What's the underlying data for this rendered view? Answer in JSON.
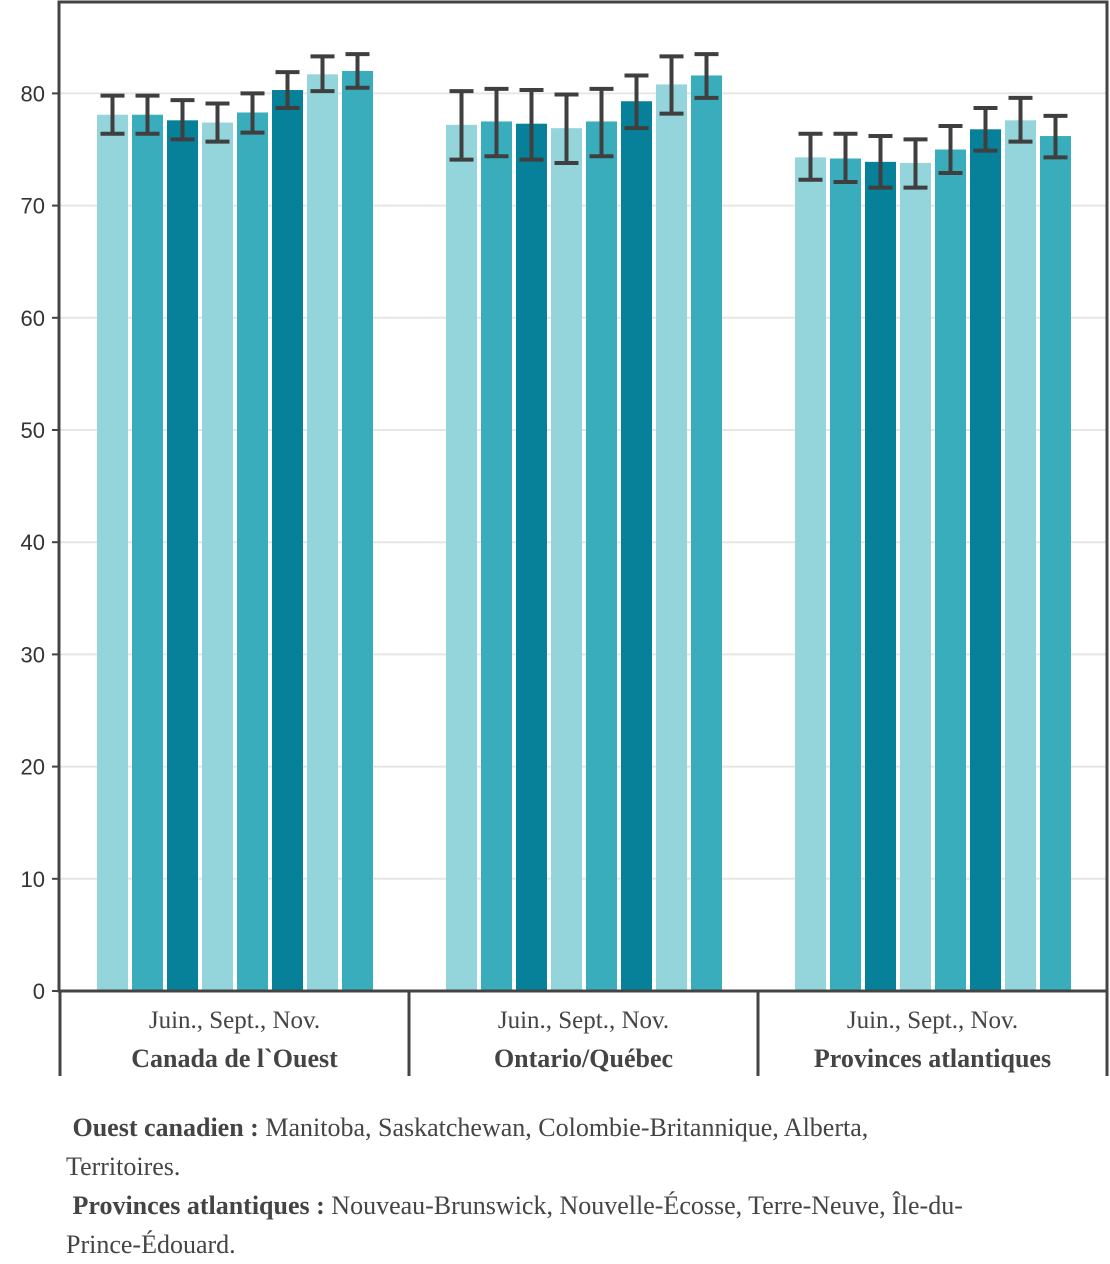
{
  "chart_data": {
    "type": "bar",
    "ylim": [
      0,
      85
    ],
    "yticks": [
      0,
      10,
      20,
      30,
      40,
      50,
      60,
      70,
      80
    ],
    "grid": true,
    "categories": [
      {
        "sublabel": "Juin., Sept., Nov.",
        "name": "Canada de l`Ouest"
      },
      {
        "sublabel": "Juin., Sept., Nov.",
        "name": "Ontario/Québec"
      },
      {
        "sublabel": "Juin., Sept., Nov.",
        "name": "Provinces atlantiques"
      }
    ],
    "series": [
      {
        "color": "#94d5dc",
        "values": [
          78.1,
          77.2,
          74.3
        ],
        "err_low": [
          76.4,
          74.1,
          72.3
        ],
        "err_high": [
          79.8,
          80.2,
          76.4
        ]
      },
      {
        "color": "#3aadbc",
        "values": [
          78.1,
          77.5,
          74.2
        ],
        "err_low": [
          76.4,
          74.4,
          72.1
        ],
        "err_high": [
          79.8,
          80.4,
          76.4
        ]
      },
      {
        "color": "#078099",
        "values": [
          77.6,
          77.3,
          73.9
        ],
        "err_low": [
          75.9,
          74.1,
          71.6
        ],
        "err_high": [
          79.4,
          80.3,
          76.2
        ]
      },
      {
        "color": "#94d5dc",
        "values": [
          77.4,
          76.9,
          73.8
        ],
        "err_low": [
          75.7,
          73.8,
          71.6
        ],
        "err_high": [
          79.1,
          79.9,
          75.9
        ]
      },
      {
        "color": "#3aadbc",
        "values": [
          78.3,
          77.5,
          75.0
        ],
        "err_low": [
          76.5,
          74.4,
          72.9
        ],
        "err_high": [
          80.0,
          80.4,
          77.1
        ]
      },
      {
        "color": "#078099",
        "values": [
          80.3,
          79.3,
          76.8
        ],
        "err_low": [
          78.7,
          76.9,
          74.9
        ],
        "err_high": [
          81.9,
          81.6,
          78.7
        ]
      },
      {
        "color": "#94d5dc",
        "values": [
          81.7,
          80.8,
          77.6
        ],
        "err_low": [
          80.2,
          78.2,
          75.7
        ],
        "err_high": [
          83.3,
          83.3,
          79.6
        ]
      },
      {
        "color": "#3aadbc",
        "values": [
          82.0,
          81.6,
          76.2
        ],
        "err_low": [
          80.5,
          79.6,
          74.3
        ],
        "err_high": [
          83.5,
          83.5,
          78.0
        ]
      }
    ],
    "colors": {
      "grid": "#e6e6e6",
      "axis": "#444444",
      "error_bar": "#3f3f3f"
    }
  },
  "notes": [
    {
      "label": "Ouest canadien :",
      "text": "Manitoba, Saskatchewan, Colombie-Britannique, Alberta, Territoires."
    },
    {
      "label": "Provinces atlantiques :",
      "text": "Nouveau-Brunswick, Nouvelle-Écosse, Terre-Neuve, Île-du-Prince-Édouard."
    }
  ]
}
